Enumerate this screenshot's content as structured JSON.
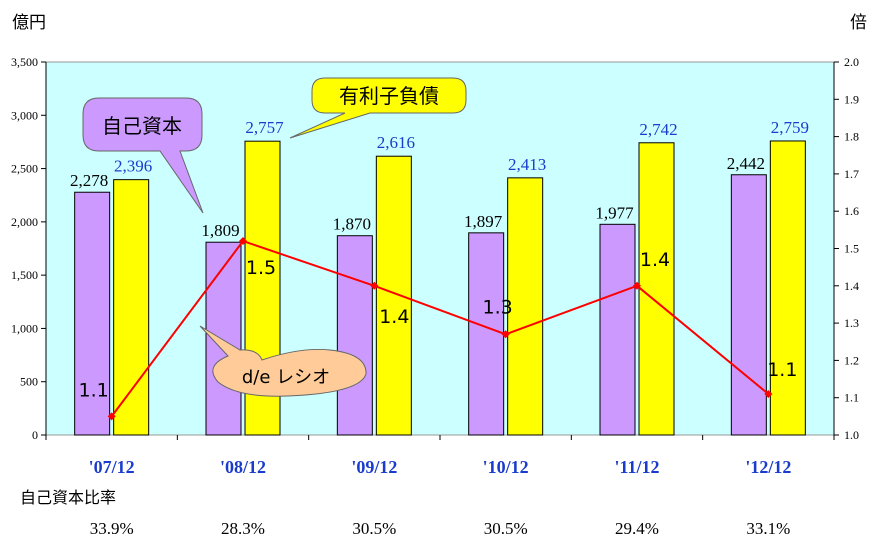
{
  "chart_data": {
    "type": "bar",
    "unit_left": "億円",
    "unit_right": "倍",
    "categories": [
      "'07/12",
      "'08/12",
      "'09/12",
      "'10/12",
      "'11/12",
      "'12/12"
    ],
    "series": [
      {
        "name": "自己資本",
        "values": [
          2278,
          1809,
          1870,
          1897,
          1977,
          2442
        ],
        "labels": [
          "2,278",
          "1,809",
          "1,870",
          "1,897",
          "1,977",
          "2,442"
        ],
        "color": "#cc99ff"
      },
      {
        "name": "有利子負債",
        "values": [
          2396,
          2757,
          2616,
          2413,
          2742,
          2759
        ],
        "labels": [
          "2,396",
          "2,757",
          "2,616",
          "2,413",
          "2,742",
          "2,759"
        ],
        "color": "#ffff00"
      }
    ],
    "line": {
      "name": "d/e レシオ",
      "values": [
        1.05,
        1.52,
        1.4,
        1.27,
        1.4,
        1.11
      ],
      "labels": [
        "1.1",
        "1.5",
        "1.4",
        "1.3",
        "1.4",
        "1.1"
      ],
      "color": "#ff0000"
    },
    "ylim": [
      0,
      3500
    ],
    "yticks": [
      "0",
      "500",
      "1,000",
      "1,500",
      "2,000",
      "2,500",
      "3,000",
      "3,500"
    ],
    "y2lim": [
      1.0,
      2.0
    ],
    "y2ticks": [
      "1.0",
      "1.1",
      "1.2",
      "1.3",
      "1.4",
      "1.5",
      "1.6",
      "1.7",
      "1.8",
      "1.9",
      "2.0"
    ],
    "plot_background": "#ccffff",
    "ratio_row": {
      "label": "自己資本比率",
      "values": [
        "33.9%",
        "28.3%",
        "30.5%",
        "30.5%",
        "29.4%",
        "33.1%"
      ]
    }
  }
}
